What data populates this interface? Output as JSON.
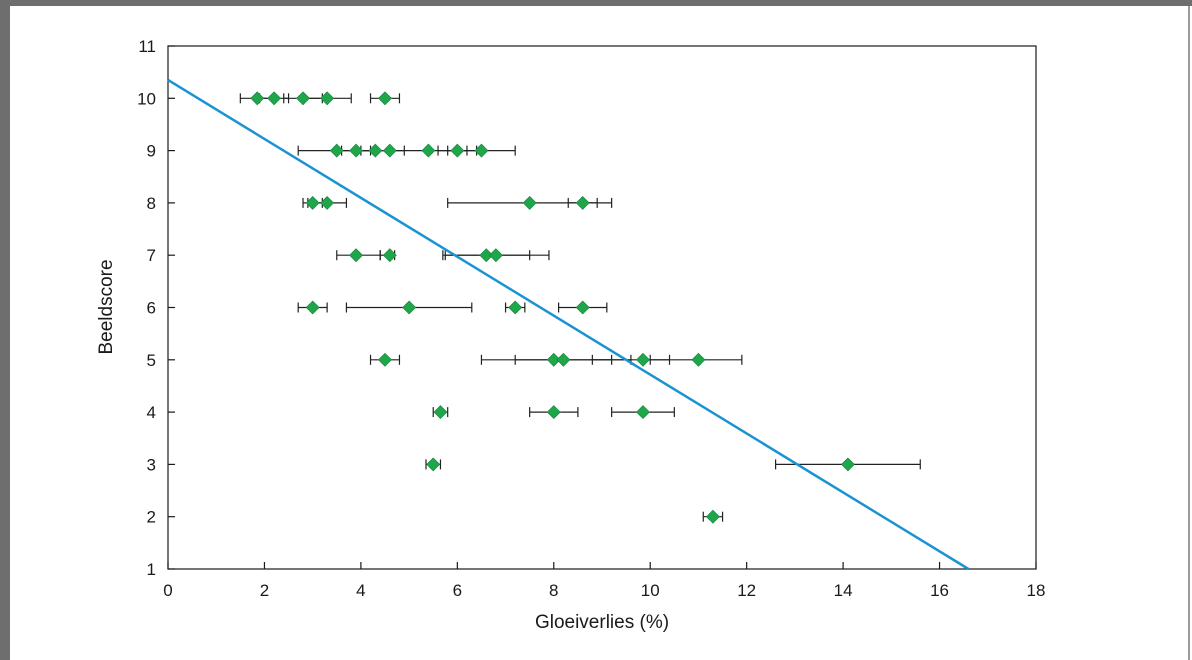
{
  "chart_data": {
    "type": "scatter",
    "title": "",
    "xlabel": "Gloeiverlies (%)",
    "ylabel": "Beeldscore",
    "xlim": [
      0,
      18
    ],
    "ylim": [
      1,
      11
    ],
    "xticks": [
      "0",
      "2",
      "4",
      "6",
      "8",
      "10",
      "12",
      "14",
      "16",
      "18"
    ],
    "yticks": [
      "1",
      "2",
      "3",
      "4",
      "5",
      "6",
      "7",
      "8",
      "9",
      "10",
      "11"
    ],
    "grid": false,
    "legend": "none",
    "colors": {
      "points": "#1fa64a",
      "trendline": "#1b93d3",
      "errorbars": "#222222"
    },
    "points": [
      {
        "x": 1.85,
        "y": 10,
        "xerr": [
          1.5,
          2.2
        ]
      },
      {
        "x": 2.2,
        "y": 10,
        "xerr": [
          1.9,
          2.5
        ]
      },
      {
        "x": 2.8,
        "y": 10,
        "xerr": [
          2.4,
          3.2
        ]
      },
      {
        "x": 3.3,
        "y": 10,
        "xerr": [
          2.8,
          3.8
        ]
      },
      {
        "x": 4.5,
        "y": 10,
        "xerr": [
          4.2,
          4.8
        ]
      },
      {
        "x": 3.5,
        "y": 9,
        "xerr": [
          2.7,
          4.3
        ]
      },
      {
        "x": 3.9,
        "y": 9,
        "xerr": [
          3.6,
          4.2
        ]
      },
      {
        "x": 4.3,
        "y": 9,
        "xerr": [
          4.0,
          4.6
        ]
      },
      {
        "x": 4.6,
        "y": 9,
        "xerr": [
          4.3,
          4.9
        ]
      },
      {
        "x": 5.4,
        "y": 9,
        "xerr": [
          4.6,
          6.2
        ]
      },
      {
        "x": 6.0,
        "y": 9,
        "xerr": [
          5.6,
          6.4
        ]
      },
      {
        "x": 6.5,
        "y": 9,
        "xerr": [
          5.8,
          7.2
        ]
      },
      {
        "x": 3.0,
        "y": 8,
        "xerr": [
          2.8,
          3.2
        ]
      },
      {
        "x": 3.3,
        "y": 8,
        "xerr": [
          2.9,
          3.7
        ]
      },
      {
        "x": 7.5,
        "y": 8,
        "xerr": [
          5.8,
          9.2
        ]
      },
      {
        "x": 8.6,
        "y": 8,
        "xerr": [
          8.3,
          8.9
        ]
      },
      {
        "x": 3.9,
        "y": 7,
        "xerr": [
          3.5,
          4.4
        ]
      },
      {
        "x": 4.6,
        "y": 7,
        "xerr": [
          4.4,
          4.7
        ]
      },
      {
        "x": 6.6,
        "y": 7,
        "xerr": [
          5.7,
          7.5
        ]
      },
      {
        "x": 6.8,
        "y": 7,
        "xerr": [
          5.75,
          7.9
        ]
      },
      {
        "x": 3.0,
        "y": 6,
        "xerr": [
          2.7,
          3.3
        ]
      },
      {
        "x": 5.0,
        "y": 6,
        "xerr": [
          3.7,
          6.3
        ]
      },
      {
        "x": 7.2,
        "y": 6,
        "xerr": [
          7.0,
          7.4
        ]
      },
      {
        "x": 8.6,
        "y": 6,
        "xerr": [
          8.1,
          9.1
        ]
      },
      {
        "x": 4.5,
        "y": 5,
        "xerr": [
          4.2,
          4.8
        ]
      },
      {
        "x": 8.0,
        "y": 5,
        "xerr": [
          6.5,
          9.6
        ]
      },
      {
        "x": 8.2,
        "y": 5,
        "xerr": [
          7.2,
          9.2
        ]
      },
      {
        "x": 9.85,
        "y": 5,
        "xerr": [
          8.8,
          10.4
        ]
      },
      {
        "x": 11.0,
        "y": 5,
        "xerr": [
          10.0,
          11.9
        ]
      },
      {
        "x": 5.65,
        "y": 4,
        "xerr": [
          5.5,
          5.8
        ]
      },
      {
        "x": 8.0,
        "y": 4,
        "xerr": [
          7.5,
          8.5
        ]
      },
      {
        "x": 9.85,
        "y": 4,
        "xerr": [
          9.2,
          10.5
        ]
      },
      {
        "x": 5.5,
        "y": 3,
        "xerr": [
          5.35,
          5.65
        ]
      },
      {
        "x": 14.1,
        "y": 3,
        "xerr": [
          12.6,
          15.6
        ]
      },
      {
        "x": 11.3,
        "y": 2,
        "xerr": [
          11.1,
          11.5
        ]
      }
    ],
    "trendline": {
      "x": [
        0,
        16.6
      ],
      "y": [
        10.35,
        1
      ]
    }
  }
}
